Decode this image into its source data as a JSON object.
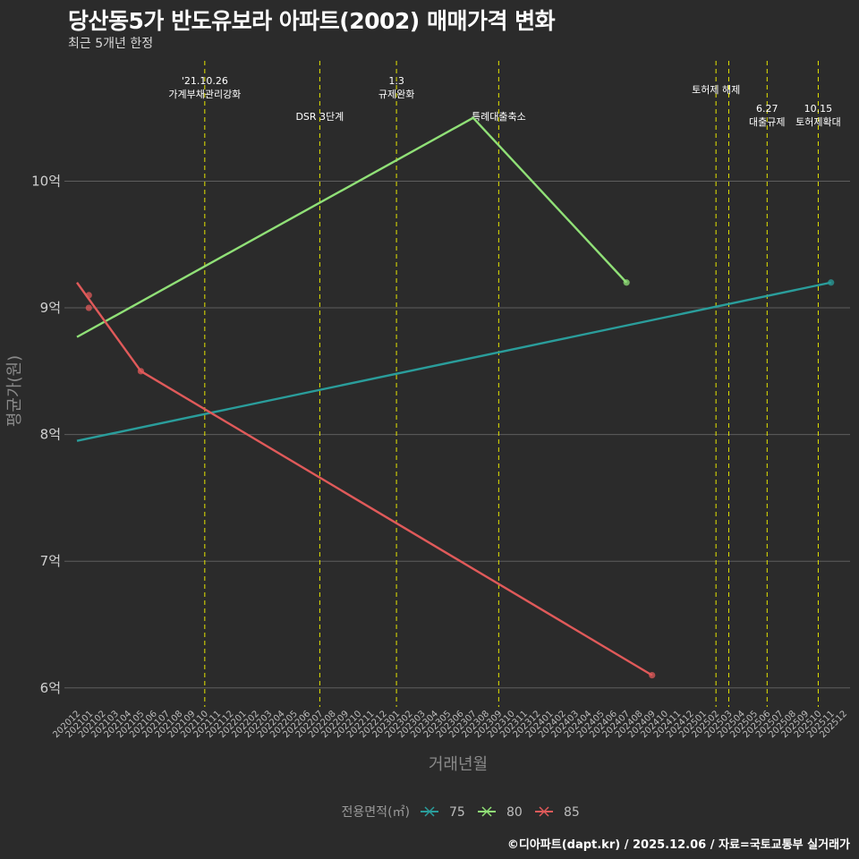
{
  "title": "당산동5가 반도유보라 아파트(2002) 매매가격 변화",
  "subtitle": "최근 5개년 한정",
  "footer": "©디아파트(dapt.kr) / 2025.12.06 / 자료=국토교통부 실거래가",
  "chart_data": {
    "type": "line",
    "xlabel": "거래년월",
    "ylabel": "평균가(원)",
    "x_categories": [
      "202012",
      "202101",
      "202102",
      "202103",
      "202104",
      "202105",
      "202106",
      "202107",
      "202108",
      "202109",
      "202110",
      "202111",
      "202112",
      "202201",
      "202202",
      "202203",
      "202204",
      "202205",
      "202206",
      "202207",
      "202208",
      "202209",
      "202210",
      "202211",
      "202212",
      "202301",
      "202302",
      "202303",
      "202304",
      "202305",
      "202306",
      "202307",
      "202308",
      "202309",
      "202310",
      "202311",
      "202312",
      "202401",
      "202402",
      "202403",
      "202404",
      "202405",
      "202406",
      "202407",
      "202408",
      "202409",
      "202410",
      "202411",
      "202412",
      "202501",
      "202502",
      "202503",
      "202504",
      "202505",
      "202506",
      "202507",
      "202508",
      "202509",
      "202510",
      "202511",
      "202512"
    ],
    "y_ticks": [
      6,
      7,
      8,
      9,
      10
    ],
    "y_tick_labels": [
      "6억",
      "7억",
      "8억",
      "9억",
      "10억"
    ],
    "ylim": [
      5.85,
      10.95
    ],
    "legend": {
      "title": "전용면적(㎡)",
      "position": "bottom"
    },
    "series": [
      {
        "name": "75",
        "color": "#2a9d9b",
        "trend": [
          {
            "x": "202012",
            "y": 7.95
          },
          {
            "x": "202511",
            "y": 9.2
          }
        ],
        "points": [
          {
            "x": "202511",
            "y": 9.2
          }
        ]
      },
      {
        "name": "80",
        "color": "#90e077",
        "trend": [
          {
            "x": "202012",
            "y": 8.77
          },
          {
            "x": "202307",
            "y": 10.5
          },
          {
            "x": "202407",
            "y": 9.2
          }
        ],
        "points": [
          {
            "x": "202407",
            "y": 9.2
          }
        ]
      },
      {
        "name": "85",
        "color": "#e05a5a",
        "trend": [
          {
            "x": "202012",
            "y": 9.2
          },
          {
            "x": "202105",
            "y": 8.5
          },
          {
            "x": "202409",
            "y": 6.1
          }
        ],
        "points": [
          {
            "x": "202101",
            "y": 9.1
          },
          {
            "x": "202101",
            "y": 9.0
          },
          {
            "x": "202105",
            "y": 8.5
          },
          {
            "x": "202409",
            "y": 6.1
          }
        ]
      }
    ],
    "events": [
      {
        "x": "202110",
        "lines": [
          "'21.10.26",
          "가계부채관리강화"
        ],
        "level": "top"
      },
      {
        "x": "202207",
        "lines": [
          "DSR 3단계"
        ],
        "level": "mid"
      },
      {
        "x": "202301",
        "lines": [
          "1.3",
          "규제완화"
        ],
        "level": "top"
      },
      {
        "x": "202309",
        "lines": [
          "특례대출축소"
        ],
        "level": "mid"
      },
      {
        "x": "202502",
        "lines": [
          "토허제 해제"
        ],
        "level": "upper"
      },
      {
        "x": "202503",
        "lines": [],
        "level": "none"
      },
      {
        "x": "202506",
        "lines": [
          "6.27",
          "대출규제"
        ],
        "level": "low"
      },
      {
        "x": "202510",
        "lines": [
          "10.15",
          "토허제확대"
        ],
        "level": "low"
      }
    ]
  }
}
